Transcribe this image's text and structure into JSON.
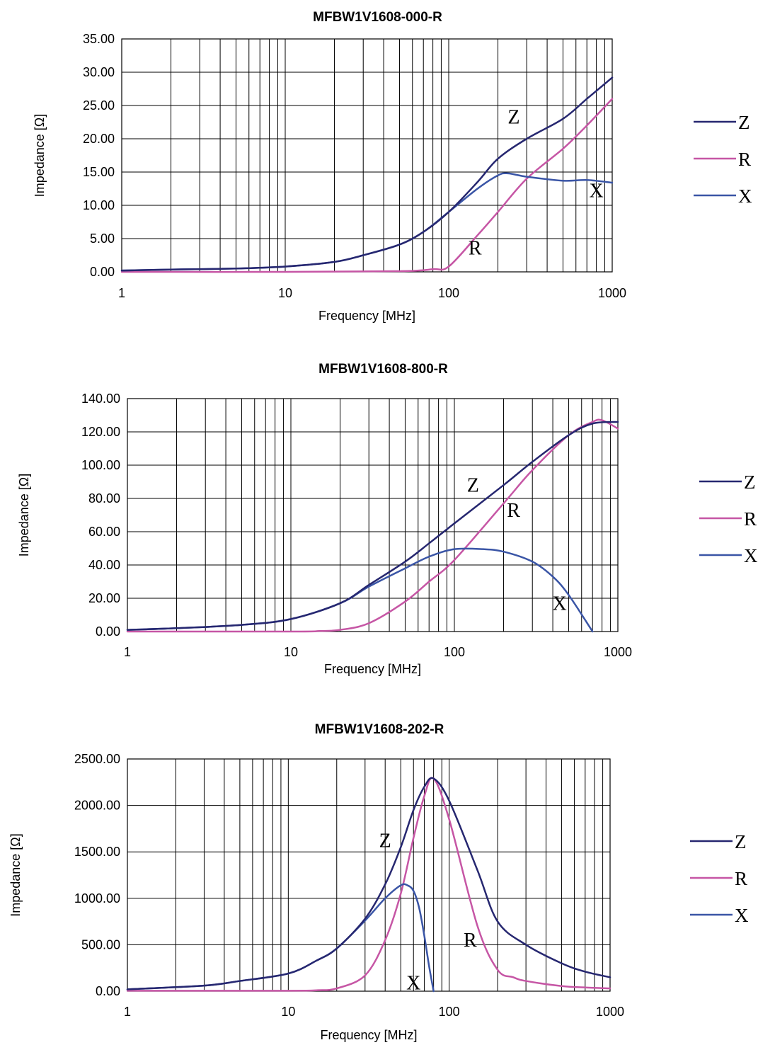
{
  "colors": {
    "Z": "#262770",
    "R": "#c656a5",
    "X": "#3a55a6"
  },
  "chart_data": [
    {
      "type": "line",
      "title": "MFBW1V1608-000-R",
      "xlabel": "Frequency [MHz]",
      "ylabel": "Impedance   [Ω]",
      "xscale": "log",
      "xlim": [
        1,
        1000
      ],
      "ylim": [
        0,
        35
      ],
      "xticks": [
        "1",
        "10",
        "100",
        "1000"
      ],
      "yticks": [
        "0.00",
        "5.00",
        "10.00",
        "15.00",
        "20.00",
        "25.00",
        "30.00",
        "35.00"
      ],
      "grid": true,
      "legend": "right",
      "series": [
        {
          "name": "Z",
          "x": [
            1,
            2,
            5,
            10,
            20,
            30,
            50,
            70,
            100,
            150,
            200,
            300,
            500,
            700,
            1000
          ],
          "y": [
            0.2,
            0.35,
            0.5,
            0.8,
            1.5,
            2.5,
            4.1,
            6.0,
            9.0,
            13.5,
            17.0,
            20.0,
            23.0,
            26.0,
            29.2
          ]
        },
        {
          "name": "R",
          "x": [
            1,
            10,
            50,
            80,
            100,
            150,
            200,
            300,
            500,
            700,
            1000
          ],
          "y": [
            0.0,
            0.0,
            0.1,
            0.4,
            0.8,
            5.5,
            9.0,
            14.0,
            18.5,
            22.0,
            26.0
          ]
        },
        {
          "name": "X",
          "x": [
            1,
            2,
            5,
            10,
            20,
            30,
            50,
            70,
            100,
            150,
            200,
            230,
            300,
            500,
            700,
            1000
          ],
          "y": [
            0.2,
            0.35,
            0.5,
            0.8,
            1.5,
            2.5,
            4.1,
            6.0,
            9.0,
            12.5,
            14.5,
            14.8,
            14.3,
            13.7,
            13.8,
            13.4
          ]
        }
      ],
      "annotations": [
        {
          "text": "Z",
          "x": 250,
          "y": 22.3
        },
        {
          "text": "R",
          "x": 145,
          "y": 2.6
        },
        {
          "text": "X",
          "x": 800,
          "y": 11.2
        }
      ]
    },
    {
      "type": "line",
      "title": "MFBW1V1608-800-R",
      "xlabel": "Frequency [MHz]",
      "ylabel": "Impedance   [Ω]",
      "xscale": "log",
      "xlim": [
        1,
        1000
      ],
      "ylim": [
        0,
        140
      ],
      "xticks": [
        "1",
        "10",
        "100",
        "1000"
      ],
      "yticks": [
        "0.00",
        "20.00",
        "40.00",
        "60.00",
        "80.00",
        "100.00",
        "120.00",
        "140.00"
      ],
      "grid": true,
      "legend": "right",
      "series": [
        {
          "name": "Z",
          "x": [
            1,
            2,
            5,
            10,
            20,
            30,
            50,
            70,
            100,
            200,
            300,
            500,
            700,
            1000
          ],
          "y": [
            1.0,
            2.0,
            4.0,
            7.5,
            17.0,
            28.0,
            42.0,
            53.0,
            65.0,
            88.0,
            102.0,
            118.0,
            125.0,
            126.0
          ]
        },
        {
          "name": "R",
          "x": [
            1,
            10,
            15,
            20,
            30,
            50,
            70,
            100,
            200,
            300,
            500,
            700,
            800,
            1000
          ],
          "y": [
            0.0,
            0.0,
            0.3,
            1.0,
            5.0,
            18.0,
            30.0,
            43.0,
            77.0,
            97.0,
            118.0,
            126.0,
            127.0,
            122.0
          ]
        },
        {
          "name": "X",
          "x": [
            1,
            2,
            5,
            10,
            20,
            30,
            50,
            70,
            100,
            150,
            200,
            300,
            400,
            500,
            700
          ],
          "y": [
            1.0,
            2.0,
            4.0,
            7.5,
            17.0,
            27.0,
            38.0,
            45.0,
            49.5,
            49.5,
            48.0,
            42.0,
            33.0,
            22.0,
            0.0
          ]
        }
      ],
      "annotations": [
        {
          "text": "Z",
          "x": 130,
          "y": 84.0
        },
        {
          "text": "R",
          "x": 230,
          "y": 69.0
        },
        {
          "text": "X",
          "x": 440,
          "y": 13.0
        }
      ]
    },
    {
      "type": "line",
      "title": "MFBW1V1608-202-R",
      "xlabel": "Frequency [MHz]",
      "ylabel": "Impedance   [Ω]",
      "xscale": "log",
      "xlim": [
        1,
        1000
      ],
      "ylim": [
        0,
        2500
      ],
      "xticks": [
        "1",
        "10",
        "100",
        "1000"
      ],
      "yticks": [
        "0.00",
        "500.00",
        "1000.00",
        "1500.00",
        "2000.00",
        "2500.00"
      ],
      "grid": true,
      "legend": "right",
      "series": [
        {
          "name": "Z",
          "x": [
            1,
            3,
            5,
            10,
            15,
            20,
            30,
            40,
            50,
            60,
            70,
            80,
            100,
            150,
            200,
            300,
            500,
            700,
            1000
          ],
          "y": [
            20,
            60,
            110,
            190,
            330,
            460,
            780,
            1150,
            1550,
            1950,
            2200,
            2290,
            2050,
            1300,
            750,
            500,
            300,
            210,
            150
          ]
        },
        {
          "name": "R",
          "x": [
            1,
            10,
            15,
            20,
            30,
            40,
            50,
            60,
            70,
            80,
            100,
            150,
            200,
            250,
            300,
            500,
            700,
            1000
          ],
          "y": [
            5,
            5,
            10,
            30,
            170,
            550,
            1050,
            1650,
            2100,
            2290,
            1850,
            700,
            230,
            150,
            110,
            55,
            40,
            30
          ]
        },
        {
          "name": "X",
          "x": [
            1,
            3,
            5,
            10,
            15,
            20,
            30,
            40,
            50,
            55,
            60,
            65,
            70,
            75,
            80
          ],
          "y": [
            20,
            60,
            110,
            190,
            330,
            460,
            760,
            1000,
            1140,
            1140,
            1080,
            900,
            600,
            270,
            0
          ]
        }
      ],
      "annotations": [
        {
          "text": "Z",
          "x": 40,
          "y": 1550
        },
        {
          "text": "R",
          "x": 135,
          "y": 480
        },
        {
          "text": "X",
          "x": 60,
          "y": 20
        }
      ]
    }
  ]
}
